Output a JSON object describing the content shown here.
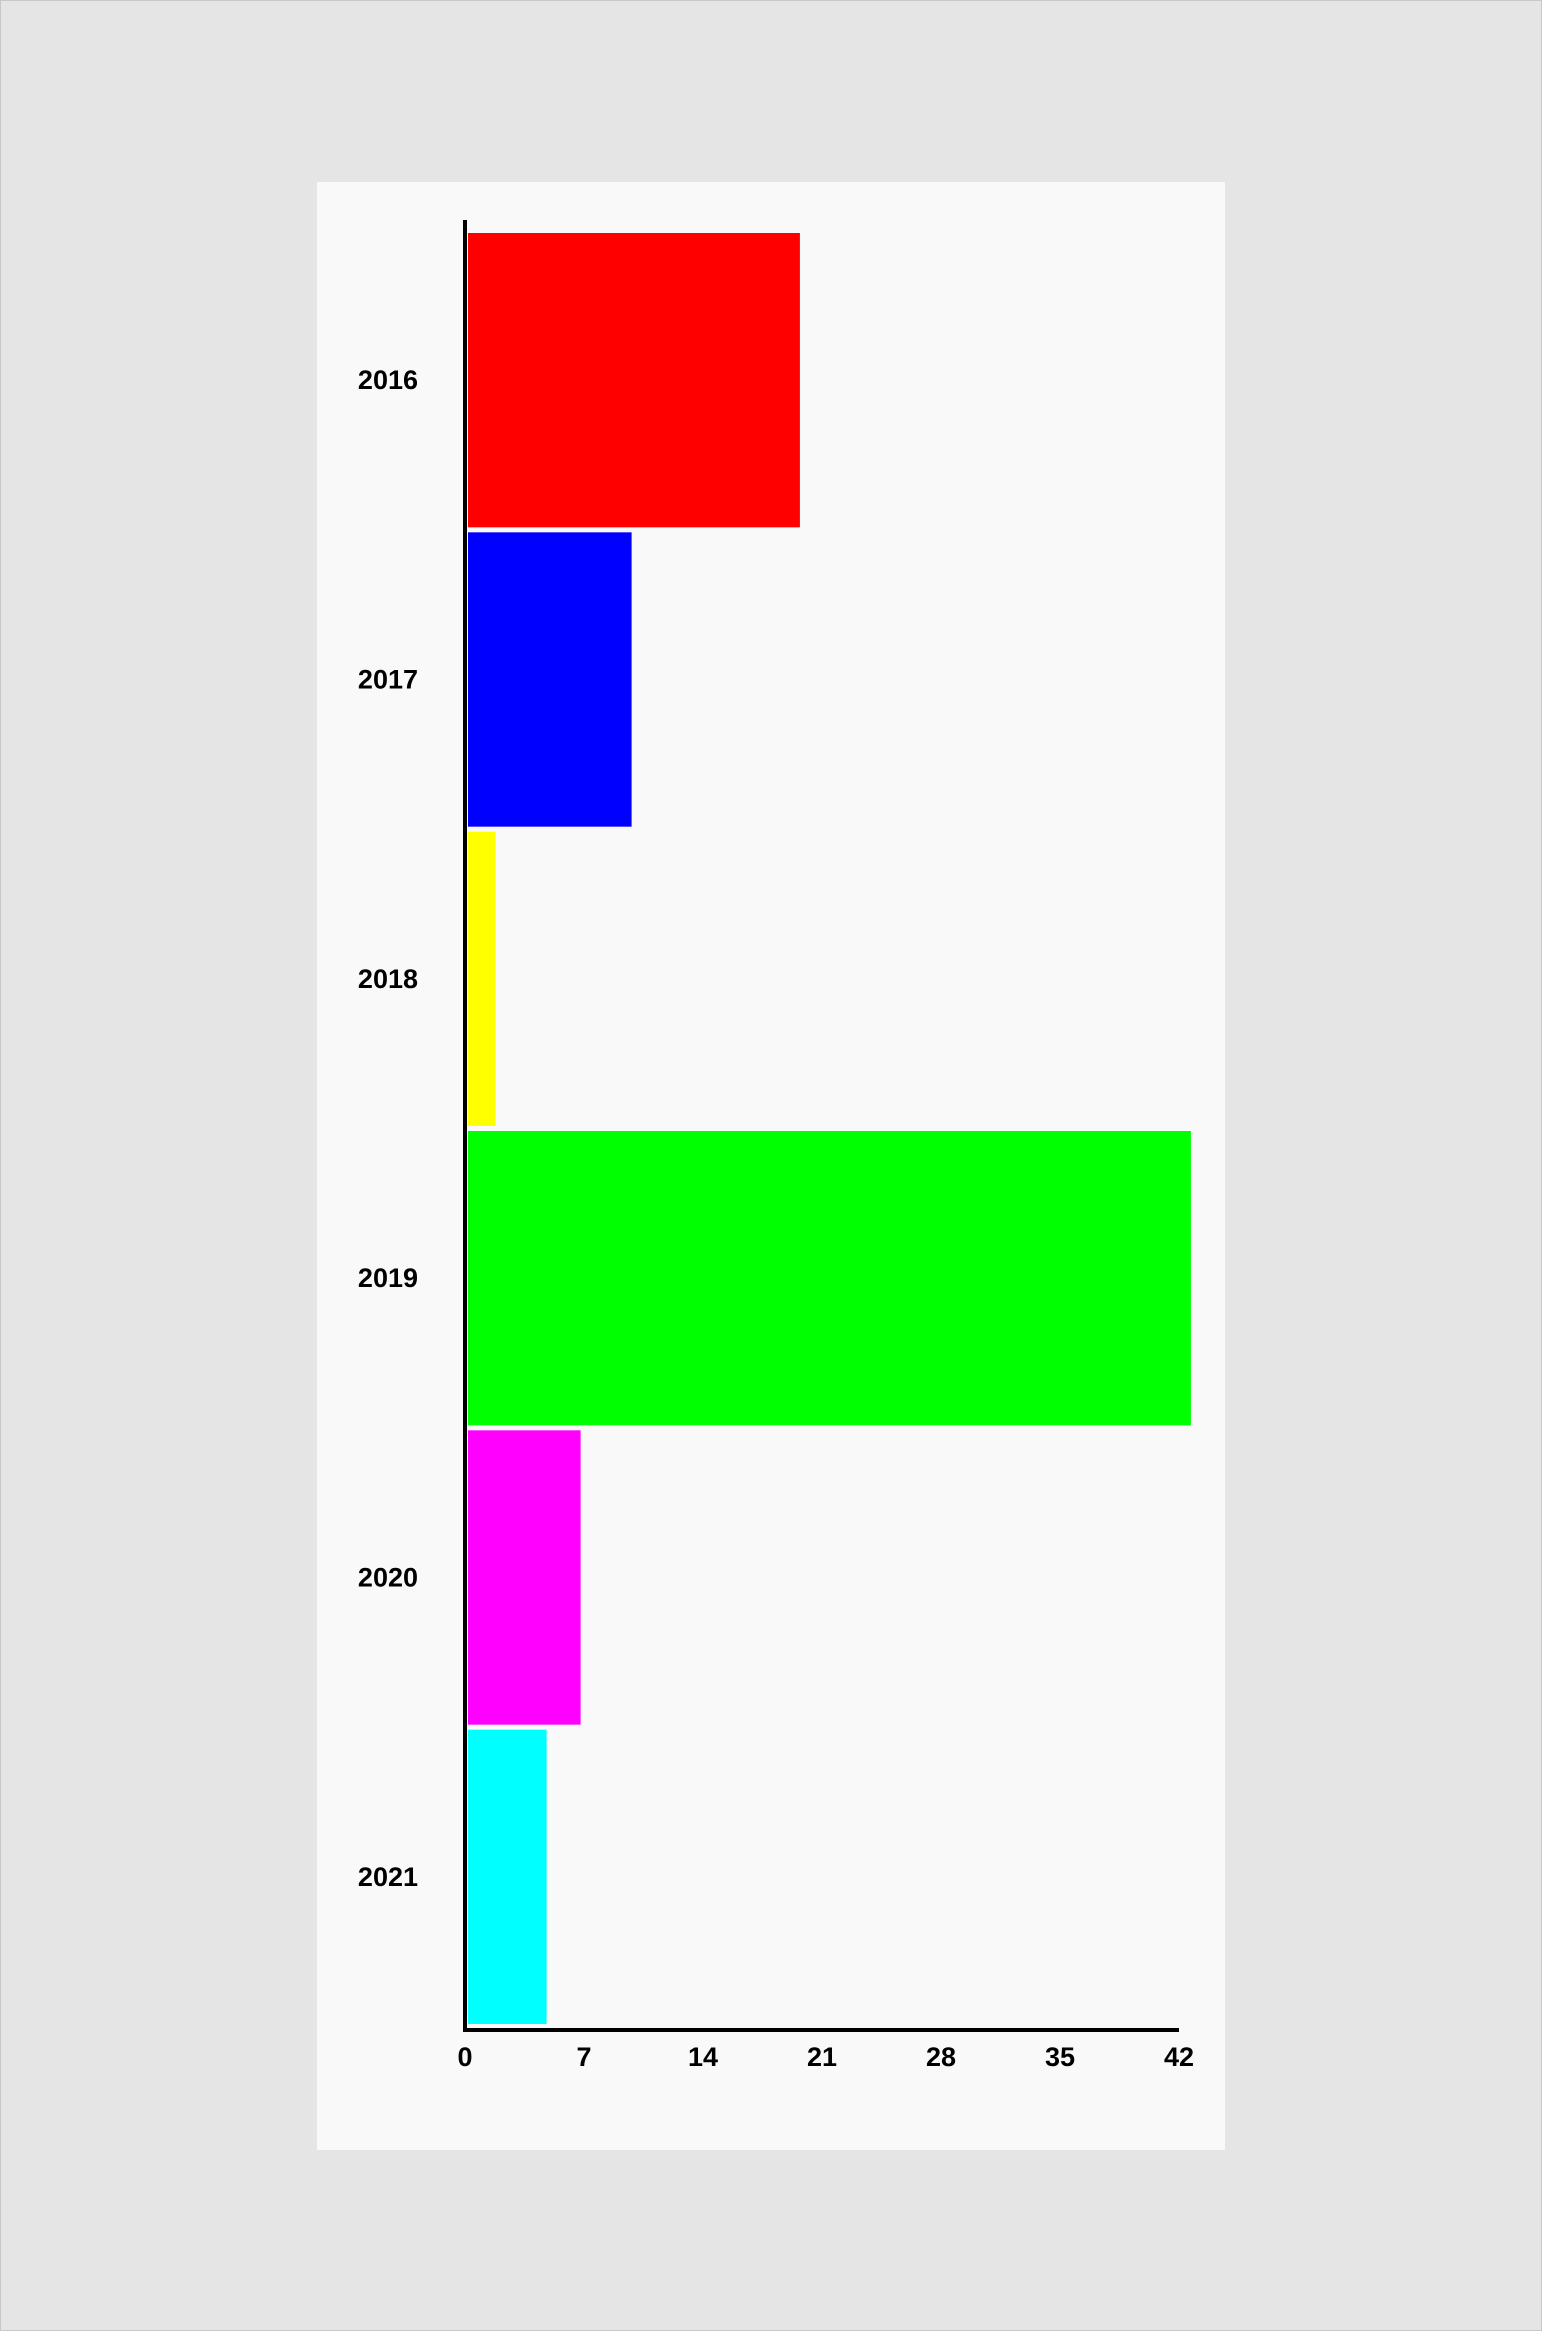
{
  "chart_data": {
    "type": "bar",
    "orientation": "horizontal",
    "title": "",
    "xlabel": "",
    "ylabel": "",
    "categories": [
      "2016",
      "2017",
      "2018",
      "2019",
      "2020",
      "2021"
    ],
    "values": [
      19.7,
      9.8,
      1.8,
      42.7,
      6.8,
      4.8
    ],
    "colors": [
      "#ff0000",
      "#0000ff",
      "#ffff00",
      "#00ff00",
      "#ff00ff",
      "#00ffff"
    ],
    "xlim": [
      0,
      42
    ],
    "xticks": [
      "0",
      "7",
      "14",
      "21",
      "28",
      "35",
      "42"
    ],
    "grid": false,
    "legend": "none"
  }
}
